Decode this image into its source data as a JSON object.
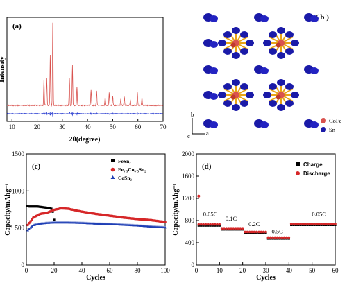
{
  "chart_data": [
    {
      "panel": "a",
      "type": "line",
      "xlabel": "2θ(degree)",
      "ylabel": "Intensity",
      "xlim": [
        8,
        70
      ],
      "xticks": [
        "10",
        "20",
        "30",
        "40",
        "50",
        "60",
        "70"
      ],
      "series": [
        {
          "color": "#d9534f",
          "peaks": [
            [
              22.7,
              0.3
            ],
            [
              23.8,
              0.33
            ],
            [
              25.2,
              0.6
            ],
            [
              26.2,
              1.0
            ],
            [
              32.8,
              0.33
            ],
            [
              34.0,
              0.48
            ],
            [
              35.8,
              0.22
            ],
            [
              41.4,
              0.19
            ],
            [
              43.6,
              0.17
            ],
            [
              47.0,
              0.1
            ],
            [
              48.6,
              0.15
            ],
            [
              50.0,
              0.12
            ],
            [
              53.2,
              0.08
            ],
            [
              54.6,
              0.1
            ],
            [
              57.0,
              0.07
            ],
            [
              59.8,
              0.16
            ],
            [
              61.6,
              0.09
            ]
          ]
        },
        {
          "color": "#2c3fd1",
          "peaks": [
            [
              22.7,
              0.25
            ],
            [
              23.8,
              0.28
            ],
            [
              25.2,
              0.4
            ],
            [
              26.2,
              0.5
            ],
            [
              32.8,
              0.25
            ],
            [
              34.0,
              0.3
            ],
            [
              35.8,
              0.18
            ],
            [
              41.4,
              0.18
            ],
            [
              43.6,
              0.15
            ],
            [
              48.6,
              0.15
            ],
            [
              50.0,
              0.12
            ],
            [
              59.8,
              0.12
            ]
          ]
        }
      ]
    },
    {
      "panel": "c",
      "type": "scatter",
      "xlabel": "Cycles",
      "ylabel": "Capacity/mAhg⁻¹",
      "xlim": [
        0,
        100
      ],
      "ylim": [
        0,
        1500
      ],
      "yticks": [
        "0",
        "500",
        "1000",
        "1500"
      ],
      "xticks": [
        "0",
        "20",
        "40",
        "60",
        "80",
        "100"
      ],
      "legend": {
        "position": "top-right",
        "entries": [
          "FeSn₂",
          "Fe₀.₅Co₀.₅Sn₂",
          "CoSn₂"
        ]
      },
      "series": [
        {
          "name": "FeSn₂",
          "marker": "square",
          "color": "#000000",
          "x": [
            1,
            2,
            4,
            6,
            8,
            10,
            12,
            14,
            16,
            18,
            19,
            20
          ],
          "y": [
            800,
            790,
            790,
            790,
            790,
            785,
            780,
            775,
            770,
            760,
            720,
            610
          ]
        },
        {
          "name": "Fe₀.₅Co₀.₅Sn₂",
          "marker": "circle",
          "color": "#d62728",
          "x": [
            1,
            5,
            10,
            15,
            20,
            25,
            30,
            40,
            50,
            60,
            70,
            80,
            90,
            100
          ],
          "y": [
            540,
            640,
            690,
            705,
            745,
            765,
            760,
            720,
            690,
            665,
            640,
            620,
            605,
            580
          ]
        },
        {
          "name": "CoSn₂",
          "marker": "triangle",
          "color": "#1f3fb5",
          "x": [
            1,
            5,
            10,
            15,
            20,
            25,
            30,
            40,
            50,
            60,
            70,
            80,
            90,
            100
          ],
          "y": [
            470,
            540,
            560,
            570,
            575,
            575,
            575,
            570,
            560,
            555,
            545,
            535,
            520,
            510
          ]
        }
      ]
    },
    {
      "panel": "d",
      "type": "scatter",
      "xlabel": "Cycles",
      "ylabel": "Capacity/mAhg⁻¹",
      "xlim": [
        0,
        60
      ],
      "ylim": [
        0,
        2000
      ],
      "yticks": [
        "0",
        "400",
        "800",
        "1200",
        "1600",
        "2000"
      ],
      "xticks": [
        "0",
        "10",
        "20",
        "30",
        "40",
        "50",
        "60"
      ],
      "legend": {
        "position": "top-right",
        "entries": [
          "Charge",
          "Discharge"
        ]
      },
      "rate_labels": [
        {
          "text": "0.05C",
          "x": 6,
          "y": 880
        },
        {
          "text": "0.1C",
          "x": 15,
          "y": 800
        },
        {
          "text": "0.2C",
          "x": 25,
          "y": 700
        },
        {
          "text": "0.5C",
          "x": 35,
          "y": 570
        },
        {
          "text": "0.05C",
          "x": 53,
          "y": 880
        }
      ],
      "segments": [
        {
          "from": 1,
          "to": 10,
          "y": 720
        },
        {
          "from": 11,
          "to": 20,
          "y": 650
        },
        {
          "from": 21,
          "to": 30,
          "y": 585
        },
        {
          "from": 31,
          "to": 40,
          "y": 485
        },
        {
          "from": 41,
          "to": 60,
          "y": 730
        }
      ],
      "first_discharge": 1240,
      "series": [
        {
          "name": "Charge",
          "marker": "square",
          "color": "#000000"
        },
        {
          "name": "Discharge",
          "marker": "circle",
          "color": "#d62728"
        }
      ]
    }
  ],
  "panels": {
    "a": {
      "tag": "(a)"
    },
    "b": {
      "tag": "( b )",
      "legend": [
        "CoFe",
        "Sn"
      ],
      "axes": {
        "b": "b",
        "a": "a",
        "c": "c"
      }
    },
    "c": {
      "tag": "(c)"
    },
    "d": {
      "tag": "(d)"
    }
  },
  "colors": {
    "red": "#d9534f",
    "blue": "#2c3fd1",
    "orange": "#e8a317",
    "sn_blue": "#1a1aa8"
  }
}
